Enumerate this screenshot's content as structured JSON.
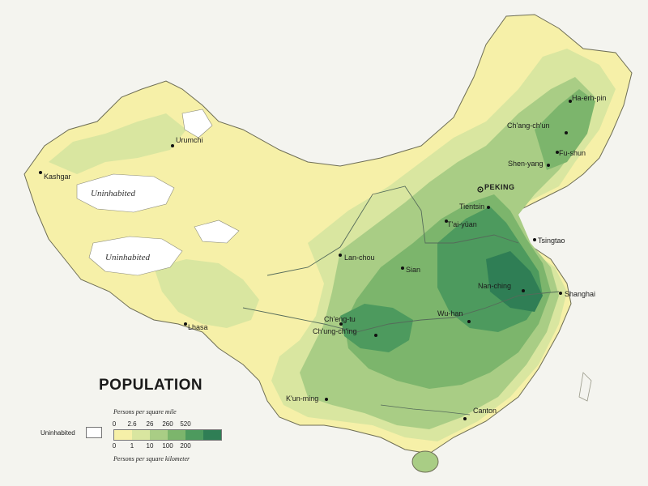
{
  "legend": {
    "title": "POPULATION",
    "uninhabited_label": "Uninhabited",
    "top_caption": "Persons per square mile",
    "bottom_caption": "Persons per square kilometer",
    "mile_ticks": [
      "0",
      "2.6",
      "26",
      "260",
      "520"
    ],
    "km_ticks": [
      "0",
      "1",
      "10",
      "100",
      "200"
    ],
    "colors": [
      "#f6f0a8",
      "#d9e6a0",
      "#a9cd85",
      "#7cb56c",
      "#4d9a5e",
      "#2f7e55"
    ]
  },
  "regions": {
    "uninhabited_1": "Uninhabited",
    "uninhabited_2": "Uninhabited"
  },
  "cities": {
    "kashgar": "Kashgar",
    "urumchi": "Urumchi",
    "lhasa": "Lhasa",
    "lanchou": "Lan-chou",
    "sian": "Sian",
    "chengtu": "Ch'eng-tu",
    "chungching": "Ch'ung-ch'ing",
    "kunming": "K'un-ming",
    "taiyuan": "T'ai-yüan",
    "peking": "PEKING",
    "tientsin": "Tientsin",
    "tsingtao": "Tsingtao",
    "nanching": "Nan-ching",
    "shanghai": "Shanghai",
    "wuhan": "Wu-han",
    "canton": "Canton",
    "shenyang": "Shen-yang",
    "fushun": "Fu-shun",
    "changchun": "Ch'ang-ch'un",
    "haerhpin": "Ha-erh-pin"
  }
}
